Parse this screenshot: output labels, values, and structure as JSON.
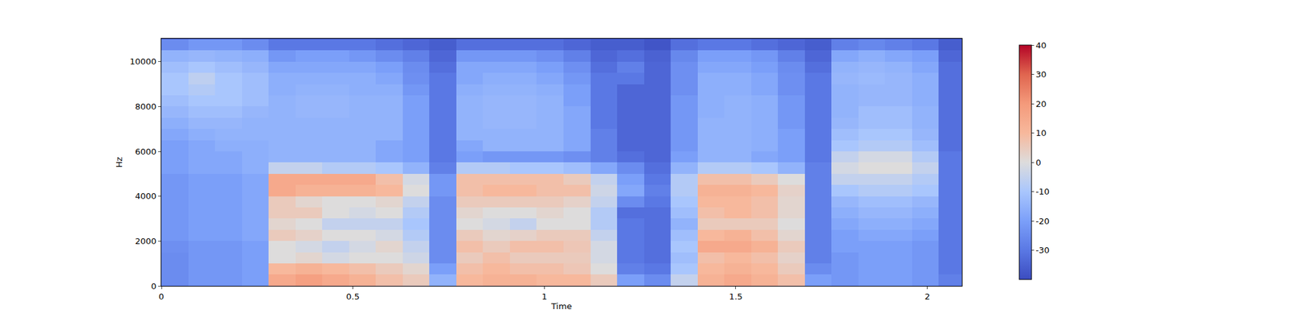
{
  "chart_data": {
    "type": "heatmap",
    "x_label": "Time",
    "y_label": "Hz",
    "x": [
      0.035,
      0.105,
      0.175,
      0.245,
      0.315,
      0.385,
      0.455,
      0.525,
      0.595,
      0.665,
      0.735,
      0.805,
      0.875,
      0.945,
      1.015,
      1.085,
      1.155,
      1.225,
      1.295,
      1.365,
      1.435,
      1.505,
      1.575,
      1.645,
      1.715,
      1.785,
      1.855,
      1.925,
      1.995,
      2.065
    ],
    "y": [
      250,
      750,
      1250,
      1750,
      2250,
      2750,
      3250,
      3750,
      4250,
      4750,
      5250,
      5750,
      6250,
      6750,
      7250,
      7750,
      8250,
      8750,
      9250,
      9750,
      10250,
      10750
    ],
    "z": [
      [
        -25,
        -22,
        -22,
        -20,
        15,
        18,
        15,
        12,
        8,
        5,
        -15,
        10,
        12,
        12,
        10,
        10,
        5,
        -20,
        -25,
        -5,
        12,
        15,
        12,
        8,
        -20,
        -22,
        -20,
        -20,
        -22,
        -28
      ],
      [
        -25,
        -22,
        -22,
        -20,
        10,
        12,
        10,
        8,
        5,
        2,
        -20,
        8,
        10,
        8,
        8,
        6,
        0,
        -28,
        -30,
        -10,
        10,
        12,
        10,
        5,
        -25,
        -22,
        -20,
        -20,
        -22,
        -30
      ],
      [
        -25,
        -22,
        -22,
        -20,
        0,
        2,
        -2,
        0,
        0,
        -3,
        -25,
        5,
        8,
        5,
        5,
        5,
        -2,
        -30,
        -32,
        -12,
        8,
        10,
        8,
        3,
        -28,
        -22,
        -20,
        -20,
        -22,
        -30
      ],
      [
        -24,
        -22,
        -22,
        -20,
        0,
        -2,
        -5,
        -2,
        2,
        -5,
        -25,
        8,
        5,
        8,
        8,
        6,
        -2,
        -30,
        -32,
        -10,
        15,
        15,
        12,
        5,
        -28,
        -20,
        -20,
        -20,
        -22,
        -30
      ],
      [
        -22,
        -20,
        -20,
        -18,
        5,
        3,
        0,
        0,
        -2,
        -8,
        -25,
        5,
        2,
        3,
        5,
        5,
        -5,
        -30,
        -32,
        -12,
        10,
        12,
        8,
        2,
        -28,
        -20,
        -18,
        -18,
        -20,
        -30
      ],
      [
        -22,
        -20,
        -20,
        -18,
        2,
        0,
        -5,
        -5,
        -5,
        -10,
        -25,
        0,
        -2,
        -5,
        0,
        0,
        -8,
        -30,
        -32,
        -15,
        5,
        5,
        5,
        0,
        -28,
        -18,
        -16,
        -16,
        -18,
        -30
      ],
      [
        -22,
        -20,
        -20,
        -18,
        5,
        5,
        0,
        -2,
        0,
        -8,
        -25,
        2,
        0,
        0,
        2,
        0,
        -8,
        -32,
        -32,
        -12,
        8,
        10,
        8,
        2,
        -28,
        -16,
        -14,
        -14,
        -16,
        -30
      ],
      [
        -22,
        -20,
        -20,
        -18,
        5,
        2,
        0,
        0,
        2,
        -5,
        -25,
        5,
        5,
        5,
        5,
        3,
        -5,
        -25,
        -30,
        -10,
        10,
        10,
        8,
        2,
        -28,
        -14,
        -12,
        -12,
        -14,
        -30
      ],
      [
        -22,
        -20,
        -20,
        -18,
        15,
        12,
        12,
        12,
        10,
        0,
        -22,
        8,
        10,
        10,
        8,
        8,
        -3,
        -18,
        -28,
        -8,
        12,
        12,
        10,
        3,
        -28,
        -10,
        -8,
        -8,
        -10,
        -30
      ],
      [
        -22,
        -20,
        -20,
        -18,
        15,
        15,
        15,
        15,
        8,
        -2,
        -22,
        8,
        8,
        8,
        8,
        5,
        -5,
        -20,
        -30,
        -8,
        8,
        8,
        5,
        0,
        -28,
        -5,
        -5,
        -5,
        -8,
        -30
      ],
      [
        -20,
        -18,
        -18,
        -16,
        -5,
        -5,
        -8,
        -8,
        -10,
        -15,
        -28,
        -8,
        -8,
        -10,
        -10,
        -12,
        -18,
        -25,
        -32,
        -15,
        -8,
        -8,
        -10,
        -15,
        -28,
        -2,
        0,
        0,
        -5,
        -30
      ],
      [
        -20,
        -18,
        -18,
        -16,
        -15,
        -15,
        -15,
        -15,
        -18,
        -20,
        -30,
        -20,
        -22,
        -22,
        -22,
        -24,
        -28,
        -32,
        -34,
        -20,
        -15,
        -15,
        -18,
        -20,
        -30,
        -5,
        -2,
        -2,
        -8,
        -30
      ],
      [
        -20,
        -18,
        -16,
        -16,
        -15,
        -15,
        -15,
        -15,
        -18,
        -20,
        -30,
        -18,
        -15,
        -15,
        -15,
        -18,
        -28,
        -34,
        -34,
        -22,
        -15,
        -15,
        -16,
        -20,
        -30,
        -10,
        -8,
        -8,
        -12,
        -32
      ],
      [
        -18,
        -16,
        -15,
        -15,
        -15,
        -15,
        -15,
        -15,
        -15,
        -20,
        -30,
        -15,
        -15,
        -15,
        -15,
        -18,
        -28,
        -34,
        -34,
        -22,
        -15,
        -15,
        -16,
        -20,
        -30,
        -12,
        -10,
        -10,
        -14,
        -32
      ],
      [
        -16,
        -14,
        -14,
        -15,
        -15,
        -15,
        -15,
        -15,
        -15,
        -20,
        -30,
        -15,
        -14,
        -14,
        -15,
        -18,
        -30,
        -34,
        -34,
        -22,
        -15,
        -15,
        -16,
        -22,
        -30,
        -14,
        -12,
        -12,
        -15,
        -32
      ],
      [
        -14,
        -12,
        -12,
        -14,
        -15,
        -14,
        -14,
        -15,
        -15,
        -20,
        -30,
        -15,
        -14,
        -14,
        -15,
        -18,
        -30,
        -34,
        -34,
        -22,
        -16,
        -15,
        -16,
        -22,
        -30,
        -15,
        -12,
        -12,
        -15,
        -32
      ],
      [
        -12,
        -10,
        -10,
        -12,
        -15,
        -14,
        -14,
        -15,
        -15,
        -20,
        -30,
        -15,
        -14,
        -14,
        -15,
        -20,
        -30,
        -34,
        -34,
        -22,
        -16,
        -15,
        -16,
        -22,
        -30,
        -15,
        -14,
        -14,
        -16,
        -32
      ],
      [
        -10,
        -8,
        -10,
        -12,
        -16,
        -15,
        -15,
        -16,
        -16,
        -22,
        -30,
        -16,
        -15,
        -15,
        -16,
        -20,
        -30,
        -34,
        -34,
        -24,
        -16,
        -16,
        -18,
        -24,
        -30,
        -15,
        -14,
        -14,
        -16,
        -32
      ],
      [
        -10,
        -6,
        -10,
        -12,
        -16,
        -16,
        -16,
        -16,
        -18,
        -24,
        -30,
        -18,
        -16,
        -16,
        -18,
        -22,
        -30,
        -30,
        -34,
        -24,
        -16,
        -16,
        -18,
        -24,
        -30,
        -14,
        -13,
        -14,
        -16,
        -32
      ],
      [
        -12,
        -10,
        -12,
        -14,
        -18,
        -18,
        -18,
        -18,
        -20,
        -25,
        -32,
        -18,
        -18,
        -18,
        -20,
        -24,
        -32,
        -28,
        -34,
        -24,
        -18,
        -18,
        -20,
        -25,
        -32,
        -15,
        -14,
        -15,
        -18,
        -32
      ],
      [
        -15,
        -14,
        -15,
        -16,
        -22,
        -20,
        -20,
        -22,
        -25,
        -28,
        -34,
        -22,
        -22,
        -22,
        -24,
        -28,
        -34,
        -32,
        -35,
        -26,
        -20,
        -20,
        -22,
        -28,
        -34,
        -18,
        -16,
        -18,
        -20,
        -34
      ],
      [
        -25,
        -22,
        -22,
        -25,
        -30,
        -30,
        -30,
        -30,
        -32,
        -34,
        -36,
        -32,
        -32,
        -32,
        -32,
        -34,
        -36,
        -36,
        -38,
        -32,
        -30,
        -30,
        -32,
        -34,
        -36,
        -28,
        -26,
        -28,
        -30,
        -36
      ]
    ],
    "xlim": [
      0,
      2.09
    ],
    "ylim": [
      0,
      11025
    ],
    "xticks": [
      0,
      0.5,
      1,
      1.5,
      2
    ],
    "yticks": [
      0,
      2000,
      4000,
      6000,
      8000,
      10000
    ],
    "colorbar": {
      "range": [
        -40,
        40
      ],
      "ticks": [
        -30,
        -20,
        -10,
        0,
        10,
        20,
        30,
        40
      ]
    },
    "grid": false
  }
}
